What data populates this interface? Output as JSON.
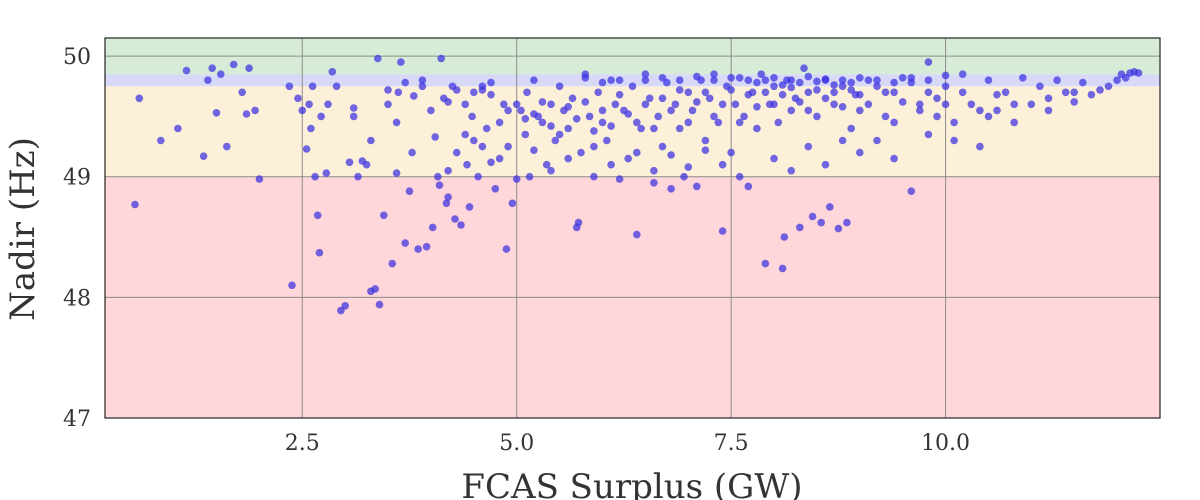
{
  "chart_data": {
    "type": "scatter",
    "title": "",
    "xlabel": "FCAS Surplus (GW)",
    "ylabel": "Nadir (Hz)",
    "xlim": [
      0.2,
      12.5
    ],
    "ylim": [
      47.0,
      50.15
    ],
    "x_ticks": [
      "2.5",
      "5.0",
      "7.5",
      "10.0"
    ],
    "x_tick_values": [
      2.5,
      5.0,
      7.5,
      10.0
    ],
    "y_ticks": [
      "47",
      "48",
      "49",
      "50"
    ],
    "y_tick_values": [
      47,
      48,
      49,
      50
    ],
    "grid": true,
    "bands": [
      {
        "name": "red",
        "y0": 47.0,
        "y1": 49.0,
        "color": "#ffd6d9"
      },
      {
        "name": "orange",
        "y0": 49.0,
        "y1": 49.75,
        "color": "#fdf0d9"
      },
      {
        "name": "blue",
        "y0": 49.75,
        "y1": 49.85,
        "color": "#d7d9f7"
      },
      {
        "name": "green",
        "y0": 49.85,
        "y1": 50.15,
        "color": "#d6ecd6"
      }
    ],
    "marker_color": "#3a2fe0",
    "points": [
      [
        0.55,
        48.77
      ],
      [
        0.6,
        49.65
      ],
      [
        0.85,
        49.3
      ],
      [
        1.05,
        49.4
      ],
      [
        1.15,
        49.88
      ],
      [
        1.35,
        49.17
      ],
      [
        1.4,
        49.8
      ],
      [
        1.45,
        49.9
      ],
      [
        1.5,
        49.53
      ],
      [
        1.55,
        49.85
      ],
      [
        1.62,
        49.25
      ],
      [
        1.7,
        49.93
      ],
      [
        1.8,
        49.7
      ],
      [
        1.85,
        49.52
      ],
      [
        1.88,
        49.9
      ],
      [
        1.95,
        49.55
      ],
      [
        2.0,
        48.98
      ],
      [
        2.35,
        49.75
      ],
      [
        2.38,
        48.1
      ],
      [
        2.45,
        49.65
      ],
      [
        2.5,
        49.55
      ],
      [
        2.55,
        49.23
      ],
      [
        2.58,
        49.6
      ],
      [
        2.62,
        49.75
      ],
      [
        2.65,
        49.0
      ],
      [
        2.68,
        48.68
      ],
      [
        2.7,
        48.37
      ],
      [
        2.72,
        49.5
      ],
      [
        2.78,
        49.03
      ],
      [
        2.85,
        49.87
      ],
      [
        2.9,
        49.75
      ],
      [
        2.95,
        47.89
      ],
      [
        3.0,
        47.93
      ],
      [
        3.05,
        49.12
      ],
      [
        3.1,
        49.57
      ],
      [
        3.15,
        49.0
      ],
      [
        3.2,
        49.13
      ],
      [
        3.25,
        49.1
      ],
      [
        3.3,
        48.05
      ],
      [
        3.35,
        48.07
      ],
      [
        3.38,
        49.98
      ],
      [
        3.4,
        47.94
      ],
      [
        3.45,
        48.68
      ],
      [
        3.5,
        49.6
      ],
      [
        3.55,
        48.28
      ],
      [
        3.6,
        49.03
      ],
      [
        3.62,
        49.7
      ],
      [
        3.65,
        49.95
      ],
      [
        3.7,
        48.45
      ],
      [
        3.75,
        48.88
      ],
      [
        3.78,
        49.2
      ],
      [
        3.8,
        49.67
      ],
      [
        3.85,
        48.4
      ],
      [
        3.9,
        49.8
      ],
      [
        3.95,
        48.42
      ],
      [
        4.0,
        49.55
      ],
      [
        4.02,
        48.58
      ],
      [
        4.05,
        49.33
      ],
      [
        4.08,
        49.0
      ],
      [
        4.1,
        48.93
      ],
      [
        4.12,
        49.98
      ],
      [
        4.15,
        49.65
      ],
      [
        4.18,
        48.78
      ],
      [
        4.2,
        48.83
      ],
      [
        4.25,
        49.75
      ],
      [
        4.28,
        48.65
      ],
      [
        4.3,
        49.2
      ],
      [
        4.35,
        48.6
      ],
      [
        4.4,
        49.6
      ],
      [
        4.42,
        49.1
      ],
      [
        4.45,
        48.75
      ],
      [
        4.48,
        49.5
      ],
      [
        4.5,
        49.3
      ],
      [
        4.55,
        49.0
      ],
      [
        4.6,
        49.72
      ],
      [
        4.65,
        49.4
      ],
      [
        4.7,
        49.78
      ],
      [
        4.75,
        48.9
      ],
      [
        4.8,
        49.15
      ],
      [
        4.85,
        49.6
      ],
      [
        4.88,
        48.4
      ],
      [
        4.9,
        49.25
      ],
      [
        4.95,
        48.78
      ],
      [
        5.0,
        48.98
      ],
      [
        5.05,
        49.55
      ],
      [
        5.1,
        49.35
      ],
      [
        5.12,
        49.7
      ],
      [
        5.15,
        49.0
      ],
      [
        5.2,
        49.8
      ],
      [
        5.25,
        49.5
      ],
      [
        5.3,
        49.45
      ],
      [
        5.35,
        49.1
      ],
      [
        5.4,
        49.6
      ],
      [
        5.45,
        49.3
      ],
      [
        5.5,
        49.75
      ],
      [
        5.55,
        49.55
      ],
      [
        5.6,
        49.4
      ],
      [
        5.65,
        49.65
      ],
      [
        5.7,
        48.58
      ],
      [
        5.72,
        48.62
      ],
      [
        5.75,
        49.2
      ],
      [
        5.8,
        49.85
      ],
      [
        5.85,
        49.5
      ],
      [
        5.9,
        49.0
      ],
      [
        5.95,
        49.7
      ],
      [
        6.0,
        49.45
      ],
      [
        6.05,
        49.3
      ],
      [
        6.1,
        49.8
      ],
      [
        6.15,
        49.6
      ],
      [
        6.2,
        48.98
      ],
      [
        6.25,
        49.55
      ],
      [
        6.3,
        49.15
      ],
      [
        6.35,
        49.75
      ],
      [
        6.4,
        48.52
      ],
      [
        6.45,
        49.4
      ],
      [
        6.5,
        49.85
      ],
      [
        6.55,
        49.65
      ],
      [
        6.6,
        48.95
      ],
      [
        6.65,
        49.5
      ],
      [
        6.7,
        49.25
      ],
      [
        6.75,
        49.78
      ],
      [
        6.8,
        48.9
      ],
      [
        6.85,
        49.6
      ],
      [
        6.9,
        49.4
      ],
      [
        6.95,
        49.0
      ],
      [
        7.0,
        49.7
      ],
      [
        7.05,
        49.55
      ],
      [
        7.1,
        48.92
      ],
      [
        7.15,
        49.8
      ],
      [
        7.2,
        49.3
      ],
      [
        7.25,
        49.65
      ],
      [
        7.3,
        49.85
      ],
      [
        7.35,
        49.45
      ],
      [
        7.4,
        48.55
      ],
      [
        7.45,
        49.75
      ],
      [
        7.5,
        49.2
      ],
      [
        7.55,
        49.6
      ],
      [
        7.6,
        49.82
      ],
      [
        7.65,
        49.5
      ],
      [
        7.7,
        48.92
      ],
      [
        7.75,
        49.7
      ],
      [
        7.8,
        49.4
      ],
      [
        7.85,
        49.85
      ],
      [
        7.9,
        48.28
      ],
      [
        7.95,
        49.6
      ],
      [
        8.0,
        49.75
      ],
      [
        8.05,
        49.45
      ],
      [
        8.1,
        48.24
      ],
      [
        8.12,
        48.5
      ],
      [
        8.15,
        49.8
      ],
      [
        8.2,
        49.55
      ],
      [
        8.25,
        49.65
      ],
      [
        8.3,
        48.58
      ],
      [
        8.35,
        49.9
      ],
      [
        8.4,
        49.7
      ],
      [
        8.45,
        48.67
      ],
      [
        8.5,
        49.5
      ],
      [
        8.55,
        48.62
      ],
      [
        8.6,
        49.8
      ],
      [
        8.65,
        48.75
      ],
      [
        8.7,
        49.6
      ],
      [
        8.75,
        48.57
      ],
      [
        8.8,
        49.75
      ],
      [
        8.85,
        48.62
      ],
      [
        8.9,
        49.4
      ],
      [
        8.95,
        49.68
      ],
      [
        9.0,
        49.55
      ],
      [
        9.1,
        49.8
      ],
      [
        9.2,
        49.3
      ],
      [
        9.3,
        49.7
      ],
      [
        9.4,
        49.45
      ],
      [
        9.5,
        49.82
      ],
      [
        9.6,
        48.88
      ],
      [
        9.7,
        49.6
      ],
      [
        9.8,
        49.95
      ],
      [
        9.9,
        49.5
      ],
      [
        10.0,
        49.75
      ],
      [
        10.1,
        49.3
      ],
      [
        10.2,
        49.85
      ],
      [
        10.3,
        49.6
      ],
      [
        10.4,
        49.25
      ],
      [
        10.5,
        49.8
      ],
      [
        10.6,
        49.55
      ],
      [
        10.7,
        49.7
      ],
      [
        10.8,
        49.45
      ],
      [
        10.9,
        49.82
      ],
      [
        11.0,
        49.6
      ],
      [
        11.1,
        49.75
      ],
      [
        11.2,
        49.65
      ],
      [
        11.3,
        49.8
      ],
      [
        11.4,
        49.7
      ],
      [
        11.5,
        49.62
      ],
      [
        11.6,
        49.78
      ],
      [
        11.7,
        49.68
      ],
      [
        11.8,
        49.72
      ],
      [
        11.9,
        49.75
      ],
      [
        12.0,
        49.8
      ],
      [
        12.05,
        49.85
      ],
      [
        12.1,
        49.82
      ],
      [
        12.15,
        49.86
      ],
      [
        12.2,
        49.87
      ],
      [
        12.25,
        49.86
      ],
      [
        5.0,
        49.6
      ],
      [
        5.1,
        49.48
      ],
      [
        5.2,
        49.52
      ],
      [
        5.3,
        49.62
      ],
      [
        5.4,
        49.42
      ],
      [
        5.5,
        49.35
      ],
      [
        5.6,
        49.58
      ],
      [
        5.7,
        49.48
      ],
      [
        5.8,
        49.62
      ],
      [
        5.9,
        49.38
      ],
      [
        6.0,
        49.55
      ],
      [
        6.1,
        49.42
      ],
      [
        6.2,
        49.68
      ],
      [
        6.3,
        49.52
      ],
      [
        6.4,
        49.45
      ],
      [
        6.5,
        49.6
      ],
      [
        6.6,
        49.4
      ],
      [
        6.7,
        49.65
      ],
      [
        6.8,
        49.55
      ],
      [
        6.9,
        49.72
      ],
      [
        7.0,
        49.45
      ],
      [
        7.1,
        49.62
      ],
      [
        7.2,
        49.7
      ],
      [
        7.3,
        49.5
      ],
      [
        7.4,
        49.6
      ],
      [
        7.5,
        49.72
      ],
      [
        7.6,
        49.45
      ],
      [
        7.7,
        49.68
      ],
      [
        7.8,
        49.58
      ],
      [
        7.9,
        49.7
      ],
      [
        8.0,
        49.6
      ],
      [
        8.1,
        49.68
      ],
      [
        8.2,
        49.74
      ],
      [
        8.3,
        49.62
      ],
      [
        8.4,
        49.55
      ],
      [
        8.5,
        49.72
      ],
      [
        8.6,
        49.65
      ],
      [
        8.7,
        49.7
      ],
      [
        8.8,
        49.58
      ],
      [
        8.9,
        49.72
      ],
      [
        9.0,
        49.68
      ],
      [
        9.1,
        49.6
      ],
      [
        9.2,
        49.75
      ],
      [
        9.3,
        49.5
      ],
      [
        9.4,
        49.7
      ],
      [
        9.5,
        49.62
      ],
      [
        9.6,
        49.78
      ],
      [
        9.7,
        49.55
      ],
      [
        9.8,
        49.7
      ],
      [
        9.9,
        49.65
      ],
      [
        10.0,
        49.6
      ],
      [
        10.2,
        49.7
      ],
      [
        10.4,
        49.55
      ],
      [
        10.6,
        49.68
      ],
      [
        7.8,
        49.78
      ],
      [
        7.9,
        49.8
      ],
      [
        8.0,
        49.82
      ],
      [
        8.1,
        49.76
      ],
      [
        8.2,
        49.8
      ],
      [
        8.3,
        49.78
      ],
      [
        8.4,
        49.83
      ],
      [
        8.5,
        49.79
      ],
      [
        8.6,
        49.81
      ],
      [
        8.7,
        49.76
      ],
      [
        8.8,
        49.8
      ],
      [
        8.9,
        49.78
      ],
      [
        9.0,
        49.82
      ],
      [
        9.2,
        49.8
      ],
      [
        9.4,
        49.78
      ],
      [
        9.6,
        49.82
      ],
      [
        9.8,
        49.8
      ],
      [
        10.0,
        49.84
      ],
      [
        6.5,
        49.8
      ],
      [
        6.7,
        49.82
      ],
      [
        6.9,
        49.8
      ],
      [
        7.1,
        49.83
      ],
      [
        7.3,
        49.8
      ],
      [
        7.5,
        49.82
      ],
      [
        7.7,
        49.8
      ],
      [
        5.8,
        49.82
      ],
      [
        6.0,
        49.78
      ],
      [
        6.2,
        49.8
      ],
      [
        4.5,
        49.7
      ],
      [
        4.6,
        49.75
      ],
      [
        4.7,
        49.68
      ],
      [
        4.3,
        49.72
      ],
      [
        4.2,
        49.62
      ],
      [
        3.9,
        49.75
      ],
      [
        3.7,
        49.78
      ],
      [
        3.5,
        49.72
      ],
      [
        4.8,
        49.45
      ],
      [
        4.9,
        49.55
      ],
      [
        4.6,
        49.25
      ],
      [
        4.4,
        49.35
      ],
      [
        4.2,
        49.05
      ],
      [
        4.7,
        49.12
      ],
      [
        5.2,
        49.22
      ],
      [
        5.4,
        49.05
      ],
      [
        5.6,
        49.15
      ],
      [
        5.9,
        49.25
      ],
      [
        6.1,
        49.1
      ],
      [
        6.4,
        49.2
      ],
      [
        6.6,
        49.05
      ],
      [
        6.8,
        49.18
      ],
      [
        7.0,
        49.08
      ],
      [
        7.2,
        49.22
      ],
      [
        7.4,
        49.1
      ],
      [
        7.6,
        49.0
      ],
      [
        8.0,
        49.15
      ],
      [
        8.2,
        49.05
      ],
      [
        8.4,
        49.25
      ],
      [
        8.6,
        49.1
      ],
      [
        8.8,
        49.3
      ],
      [
        9.0,
        49.2
      ],
      [
        9.4,
        49.15
      ],
      [
        9.8,
        49.35
      ],
      [
        10.1,
        49.45
      ],
      [
        10.5,
        49.5
      ],
      [
        10.8,
        49.6
      ],
      [
        11.2,
        49.55
      ],
      [
        11.5,
        49.7
      ],
      [
        3.3,
        49.3
      ],
      [
        3.6,
        49.45
      ],
      [
        3.1,
        49.5
      ],
      [
        2.8,
        49.6
      ],
      [
        2.6,
        49.4
      ]
    ]
  }
}
